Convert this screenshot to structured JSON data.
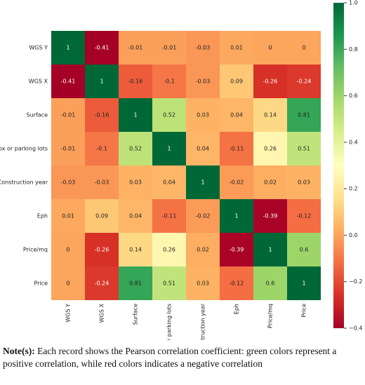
{
  "chart_data": {
    "type": "heatmap",
    "x_categories": [
      "WGS Y",
      "WGS X",
      "Surface",
      "Box or parking lots",
      "Construction year",
      "Eph",
      "Price/mq",
      "Price"
    ],
    "y_categories": [
      "WGS Y",
      "WGS X",
      "Surface",
      "Box or parking lots",
      "Construction year",
      "Eph",
      "Price/mq",
      "Price"
    ],
    "values": [
      [
        1,
        -0.41,
        -0.01,
        -0.01,
        -0.03,
        0.01,
        0,
        0
      ],
      [
        -0.41,
        1,
        -0.16,
        -0.1,
        -0.03,
        0.09,
        -0.26,
        -0.24
      ],
      [
        -0.01,
        -0.16,
        1,
        0.52,
        0.03,
        0.04,
        0.14,
        0.81
      ],
      [
        -0.01,
        -0.1,
        0.52,
        1,
        0.04,
        -0.11,
        0.26,
        0.51
      ],
      [
        -0.03,
        -0.03,
        0.03,
        0.04,
        1,
        -0.02,
        0.02,
        0.03
      ],
      [
        0.01,
        0.09,
        0.04,
        -0.11,
        -0.02,
        1,
        -0.39,
        -0.12
      ],
      [
        0,
        -0.26,
        0.14,
        0.26,
        0.02,
        -0.39,
        1,
        0.6
      ],
      [
        0,
        -0.24,
        0.81,
        0.51,
        0.03,
        -0.12,
        0.6,
        1
      ]
    ],
    "colormap": [
      "#a50026",
      "#d73027",
      "#f46d43",
      "#fdae61",
      "#fee08b",
      "#ffffbf",
      "#d9ef8b",
      "#a6d96a",
      "#66bd63",
      "#1a9850",
      "#006837"
    ],
    "clim": [
      -0.4,
      1
    ],
    "cticks": [
      {
        "value": -0.4,
        "label": "−0.4"
      },
      {
        "value": -0.2,
        "label": "−0.2"
      },
      {
        "value": 0,
        "label": "0.0"
      },
      0.2,
      0.4,
      0.6,
      0.8,
      {
        "value": 1,
        "label": "1.0"
      }
    ]
  },
  "note_label": "Note(s):",
  "note": " Each record shows the Pearson correlation coefficient: green colors represent a positive correlation, while red colors indicates a negative correlation"
}
